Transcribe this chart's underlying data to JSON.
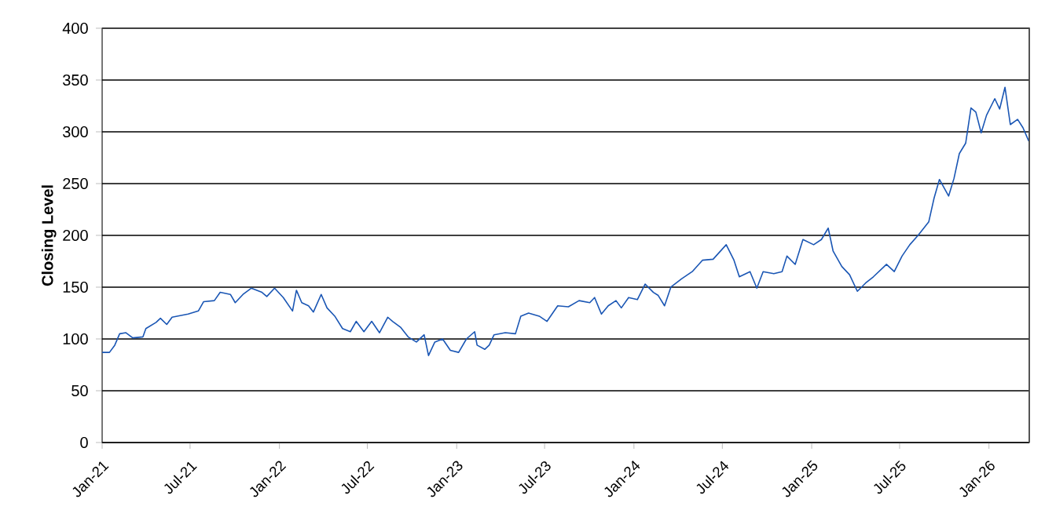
{
  "chart_data": {
    "type": "line",
    "ylabel": "Closing Level",
    "xlim": [
      "2021-01-01",
      "2026-03-25"
    ],
    "xticks": [
      {
        "value": "2021-01-01",
        "label": "Jan-21"
      },
      {
        "value": "2021-07-01",
        "label": "Jul-21"
      },
      {
        "value": "2022-01-01",
        "label": "Jan-22"
      },
      {
        "value": "2022-07-01",
        "label": "Jul-22"
      },
      {
        "value": "2023-01-01",
        "label": "Jan-23"
      },
      {
        "value": "2023-07-01",
        "label": "Jul-23"
      },
      {
        "value": "2024-01-01",
        "label": "Jan-24"
      },
      {
        "value": "2024-07-01",
        "label": "Jul-24"
      },
      {
        "value": "2025-01-01",
        "label": "Jan-25"
      },
      {
        "value": "2025-07-01",
        "label": "Jul-25"
      },
      {
        "value": "2026-01-01",
        "label": "Jan-26"
      }
    ],
    "ylim": [
      0,
      400
    ],
    "yticks": [
      0,
      50,
      100,
      150,
      200,
      250,
      300,
      350,
      400
    ],
    "grid": "y",
    "marker": "none",
    "line_style": "solid",
    "series": [
      {
        "color": "#1a56b4",
        "x": [
          "2021-01-01",
          "2021-01-16",
          "2021-01-27",
          "2021-02-06",
          "2021-02-19",
          "2021-03-05",
          "2021-03-26",
          "2021-04-01",
          "2021-04-22",
          "2021-05-01",
          "2021-05-14",
          "2021-05-25",
          "2021-06-27",
          "2021-07-18",
          "2021-07-29",
          "2021-08-20",
          "2021-09-01",
          "2021-09-22",
          "2021-10-02",
          "2021-10-18",
          "2021-11-04",
          "2021-11-26",
          "2021-12-06",
          "2021-12-22",
          "2022-01-09",
          "2022-01-28",
          "2022-02-05",
          "2022-02-16",
          "2022-03-02",
          "2022-03-12",
          "2022-03-28",
          "2022-04-09",
          "2022-04-25",
          "2022-05-11",
          "2022-05-27",
          "2022-06-08",
          "2022-06-24",
          "2022-07-10",
          "2022-07-26",
          "2022-08-12",
          "2022-08-22",
          "2022-09-08",
          "2022-09-23",
          "2022-10-10",
          "2022-10-26",
          "2022-11-04",
          "2022-11-17",
          "2022-12-03",
          "2022-12-19",
          "2023-01-05",
          "2023-01-21",
          "2023-02-07",
          "2023-02-12",
          "2023-02-28",
          "2023-03-09",
          "2023-03-19",
          "2023-04-11",
          "2023-05-02",
          "2023-05-13",
          "2023-05-29",
          "2023-06-20",
          "2023-07-06",
          "2023-07-28",
          "2023-08-19",
          "2023-09-10",
          "2023-10-02",
          "2023-10-12",
          "2023-10-26",
          "2023-11-09",
          "2023-11-25",
          "2023-12-06",
          "2023-12-21",
          "2024-01-08",
          "2024-01-24",
          "2024-02-10",
          "2024-02-20",
          "2024-03-04",
          "2024-03-17",
          "2024-04-08",
          "2024-04-30",
          "2024-05-21",
          "2024-06-12",
          "2024-07-09",
          "2024-07-25",
          "2024-08-05",
          "2024-08-27",
          "2024-09-10",
          "2024-09-23",
          "2024-10-15",
          "2024-11-01",
          "2024-11-11",
          "2024-11-28",
          "2024-12-14",
          "2025-01-05",
          "2025-01-21",
          "2025-02-04",
          "2025-02-14",
          "2025-03-04",
          "2025-03-20",
          "2025-04-05",
          "2025-04-22",
          "2025-05-08",
          "2025-06-04",
          "2025-06-20",
          "2025-07-06",
          "2025-07-22",
          "2025-08-08",
          "2025-08-30",
          "2025-09-10",
          "2025-09-21",
          "2025-10-10",
          "2025-10-21",
          "2025-11-01",
          "2025-11-14",
          "2025-11-25",
          "2025-12-05",
          "2025-12-16",
          "2025-12-27",
          "2026-01-13",
          "2026-01-23",
          "2026-02-03",
          "2026-02-14",
          "2026-03-01",
          "2026-03-12",
          "2026-03-24"
        ],
        "values": [
          87,
          87,
          94,
          105,
          106,
          101,
          102,
          110,
          116,
          120,
          114,
          121,
          124,
          127,
          136,
          137,
          145,
          143,
          135,
          143,
          149,
          145,
          141,
          149,
          140,
          127,
          147,
          135,
          132,
          126,
          143,
          130,
          122,
          110,
          107,
          117,
          107,
          117,
          106,
          121,
          117,
          111,
          102,
          97,
          104,
          84,
          97,
          100,
          89,
          87,
          100,
          107,
          94,
          90,
          94,
          104,
          106,
          105,
          122,
          125,
          122,
          117,
          132,
          131,
          137,
          135,
          140,
          124,
          132,
          137,
          130,
          140,
          138,
          153,
          145,
          142,
          132,
          150,
          158,
          165,
          176,
          177,
          191,
          176,
          160,
          165,
          149,
          165,
          163,
          165,
          180,
          172,
          196,
          191,
          196,
          207,
          185,
          170,
          162,
          146,
          154,
          160,
          172,
          165,
          180,
          191,
          200,
          213,
          236,
          254,
          238,
          255,
          279,
          289,
          323,
          319,
          299,
          316,
          332,
          322,
          343,
          307,
          312,
          304,
          291
        ]
      }
    ]
  }
}
